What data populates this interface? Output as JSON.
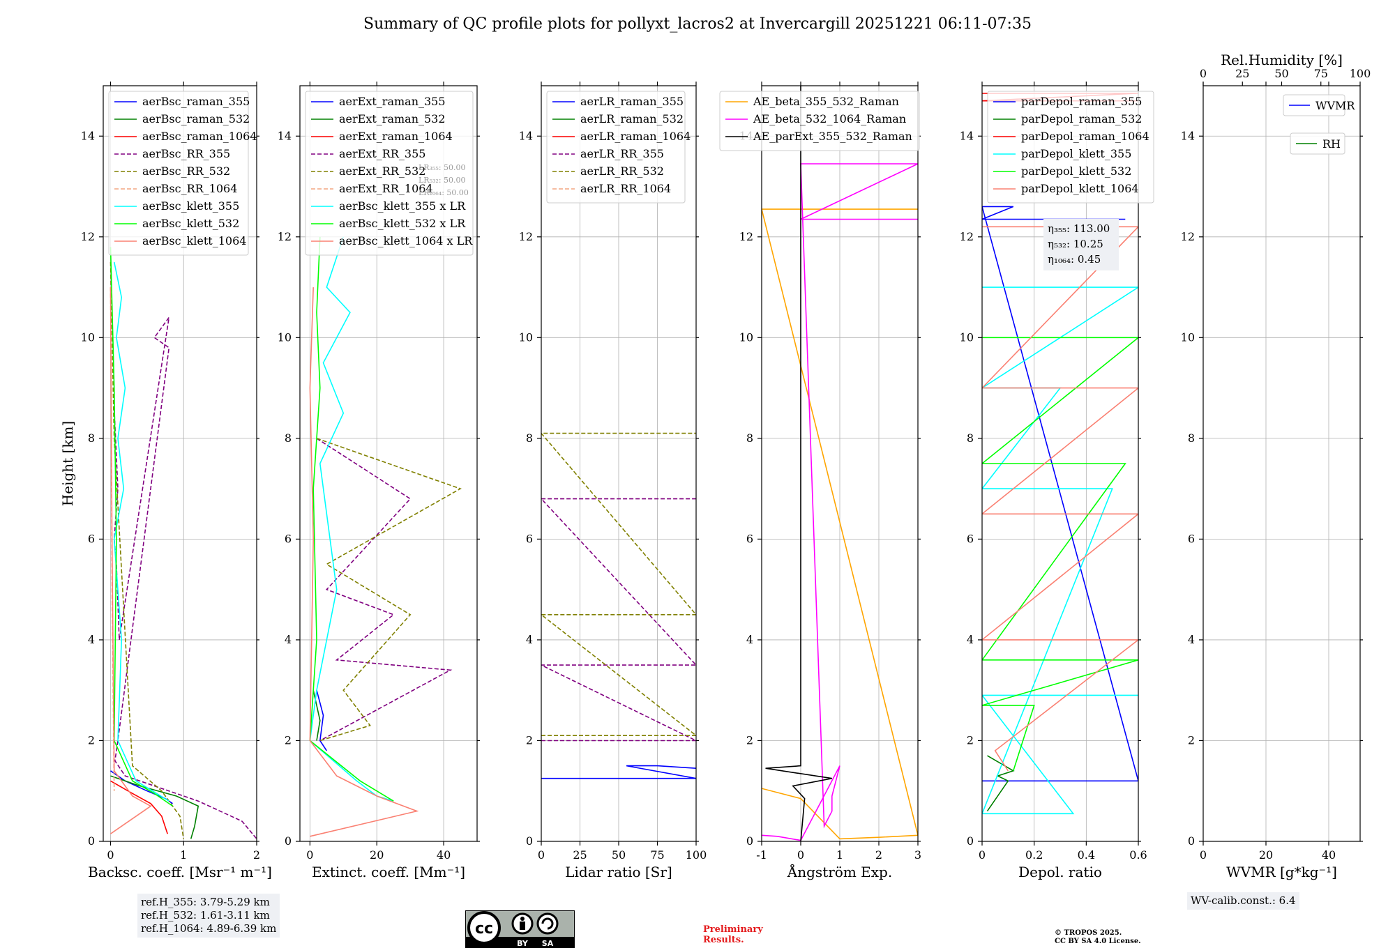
{
  "figure": {
    "title": "Summary of QC profile plots for pollyxt_lacros2 at Invercargill 20251221 06:11-07:35",
    "ylabel": "Height [km]",
    "ref_heights": [
      "ref.H_355: 3.79-5.29 km",
      "ref.H_532: 1.61-3.11 km",
      "ref.H_1064: 4.89-6.39 km"
    ],
    "wv_calib": "WV-calib.const.: 6.4",
    "preliminary": [
      "Preliminary",
      "Results."
    ],
    "copyright": [
      "© TROPOS 2025.",
      "CC BY SA 4.0 License."
    ],
    "license_badge": {
      "cc": "cc",
      "by": "BY",
      "sa": "SA"
    }
  },
  "chart_data": [
    {
      "type": "line",
      "title": "",
      "xlabel": "Backsc. coeff. [Msr⁻¹ m⁻¹]",
      "ylabel": "Height [km]",
      "xlim": [
        -0.1,
        2
      ],
      "ylim": [
        0,
        15
      ],
      "xticks": [
        0,
        1,
        2
      ],
      "yticks": [
        0,
        2,
        4,
        6,
        8,
        10,
        12,
        14
      ],
      "legend": "top",
      "series": [
        {
          "name": "aerBsc_raman_355",
          "color": "#0000ff",
          "dash": false,
          "x": [
            0.0,
            0.2,
            0.5,
            0.75,
            0.85
          ],
          "y": [
            1.4,
            1.2,
            1.0,
            0.85,
            0.75
          ]
        },
        {
          "name": "aerBsc_raman_532",
          "color": "#008000",
          "dash": false,
          "x": [
            0.0,
            0.4,
            0.9,
            1.2,
            1.15,
            1.1
          ],
          "y": [
            1.3,
            1.1,
            0.9,
            0.7,
            0.3,
            0.05
          ]
        },
        {
          "name": "aerBsc_raman_1064",
          "color": "#ff0000",
          "dash": false,
          "x": [
            0.0,
            0.3,
            0.55,
            0.7,
            0.78
          ],
          "y": [
            1.2,
            0.95,
            0.75,
            0.5,
            0.15
          ]
        },
        {
          "name": "aerBsc_RR_355",
          "color": "#800080",
          "dash": true,
          "x": [
            0.05,
            0.1,
            0.05,
            0.08,
            0.12,
            0.8,
            0.6,
            0.8,
            0.1,
            0.06,
            0.2,
            0.6,
            1.2,
            1.8,
            2.0
          ],
          "y": [
            8.6,
            7.0,
            6.0,
            5.5,
            4.0,
            10.4,
            10.0,
            9.8,
            2.0,
            1.6,
            1.3,
            1.1,
            0.8,
            0.4,
            0.05
          ]
        },
        {
          "name": "aerBsc_RR_532",
          "color": "#808000",
          "dash": true,
          "x": [
            0.0,
            0.05,
            0.3,
            0.7,
            0.95,
            1.0
          ],
          "y": [
            11.5,
            8.0,
            1.5,
            1.0,
            0.5,
            0.05
          ]
        },
        {
          "name": "aerBsc_RR_1064",
          "color": "#f4a582",
          "dash": true,
          "x": [
            0.0,
            0.02,
            0.05
          ],
          "y": [
            11.0,
            5.0,
            1.0
          ]
        },
        {
          "name": "aerBsc_klett_355",
          "color": "#00ffff",
          "dash": false,
          "x": [
            0.05,
            0.15,
            0.08,
            0.2,
            0.1,
            0.18,
            0.05,
            0.15,
            0.1,
            0.35,
            0.8
          ],
          "y": [
            11.5,
            10.8,
            10.0,
            9.0,
            8.0,
            7.0,
            6.0,
            4.0,
            2.0,
            1.2,
            0.8
          ]
        },
        {
          "name": "aerBsc_klett_532",
          "color": "#00ff00",
          "dash": false,
          "x": [
            0.0,
            0.05,
            0.08,
            0.05,
            0.3,
            0.6,
            0.85
          ],
          "y": [
            11.8,
            9.0,
            6.0,
            2.0,
            1.2,
            0.95,
            0.7
          ]
        },
        {
          "name": "aerBsc_klett_1064",
          "color": "#fa8072",
          "dash": false,
          "x": [
            0.0,
            0.02,
            0.05,
            0.3,
            0.55,
            0.0
          ],
          "y": [
            11.0,
            6.0,
            1.4,
            0.9,
            0.7,
            0.15
          ]
        }
      ],
      "annotations": []
    },
    {
      "type": "line",
      "title": "",
      "xlabel": "Extinct. coeff. [Mm⁻¹]",
      "xlim": [
        -3,
        50
      ],
      "ylim": [
        0,
        15
      ],
      "xticks": [
        0,
        20,
        40
      ],
      "yticks": [
        0,
        2,
        4,
        6,
        8,
        10,
        12,
        14
      ],
      "legend": "top",
      "series": [
        {
          "name": "aerExt_raman_355",
          "color": "#0000ff",
          "dash": false,
          "x": [
            2,
            4,
            3,
            5
          ],
          "y": [
            3.0,
            2.5,
            2.0,
            1.8
          ]
        },
        {
          "name": "aerExt_raman_532",
          "color": "#008000",
          "dash": false,
          "x": [
            1,
            3,
            2
          ],
          "y": [
            3.0,
            2.4,
            2.0
          ]
        },
        {
          "name": "aerExt_raman_1064",
          "color": "#ff0000",
          "dash": false,
          "x": [],
          "y": []
        },
        {
          "name": "aerExt_RR_355",
          "color": "#800080",
          "dash": true,
          "x": [
            2,
            30,
            5,
            25,
            8,
            42,
            3
          ],
          "y": [
            8.0,
            6.8,
            5.0,
            4.5,
            3.6,
            3.4,
            2.0
          ]
        },
        {
          "name": "aerExt_RR_532",
          "color": "#808000",
          "dash": true,
          "x": [
            2,
            45,
            5,
            30,
            10,
            18,
            3
          ],
          "y": [
            8.0,
            7.0,
            5.5,
            4.5,
            3.0,
            2.3,
            2.0
          ]
        },
        {
          "name": "aerExt_RR_1064",
          "color": "#f4a582",
          "dash": true,
          "x": [],
          "y": []
        },
        {
          "name": "aerBsc_klett_355 x LR",
          "color": "#00ffff",
          "dash": false,
          "x": [
            10,
            5,
            12,
            4,
            10,
            3,
            8,
            2,
            0,
            14,
            20,
            25
          ],
          "y": [
            12.0,
            11.0,
            10.5,
            9.5,
            8.5,
            7.5,
            5.0,
            3.0,
            2.0,
            1.2,
            0.9,
            0.8
          ]
        },
        {
          "name": "aerBsc_klett_532 x LR",
          "color": "#00ff00",
          "dash": false,
          "x": [
            3,
            2,
            3,
            1,
            2,
            0,
            15,
            25
          ],
          "y": [
            12.0,
            10.5,
            9.0,
            7.0,
            4.0,
            2.0,
            1.2,
            0.8
          ]
        },
        {
          "name": "aerBsc_klett_1064 x LR",
          "color": "#fa8072",
          "dash": false,
          "x": [
            1,
            0,
            1,
            0,
            8,
            20,
            32,
            0
          ],
          "y": [
            11.0,
            9.0,
            6.0,
            2.0,
            1.3,
            0.9,
            0.6,
            0.1
          ]
        }
      ],
      "annotations": [
        "LR₃₅₅: 50.00",
        "LR₅₃₂: 50.00",
        "LR₁₀₆₄: 50.00"
      ]
    },
    {
      "type": "line",
      "title": "",
      "xlabel": "Lidar ratio [Sr]",
      "xlim": [
        0,
        100
      ],
      "ylim": [
        0,
        15
      ],
      "xticks": [
        0,
        25,
        50,
        75,
        100
      ],
      "yticks": [
        0,
        2,
        4,
        6,
        8,
        10,
        12,
        14
      ],
      "legend": "top",
      "series": [
        {
          "name": "aerLR_raman_355",
          "color": "#0000ff",
          "dash": false,
          "x": [
            0,
            100,
            55,
            75,
            100
          ],
          "y": [
            1.25,
            1.25,
            1.5,
            1.5,
            1.45
          ]
        },
        {
          "name": "aerLR_raman_532",
          "color": "#008000",
          "dash": false,
          "x": [],
          "y": []
        },
        {
          "name": "aerLR_raman_1064",
          "color": "#ff0000",
          "dash": false,
          "x": [],
          "y": []
        },
        {
          "name": "aerLR_RR_355",
          "color": "#800080",
          "dash": true,
          "x": [
            0,
            100,
            0,
            100,
            0,
            100
          ],
          "y": [
            2.0,
            2.0,
            3.5,
            3.5,
            6.8,
            6.8
          ]
        },
        {
          "name": "aerLR_RR_532",
          "color": "#808000",
          "dash": true,
          "x": [
            0,
            100,
            0,
            100,
            0,
            100
          ],
          "y": [
            2.1,
            2.1,
            4.5,
            4.5,
            8.1,
            8.1
          ]
        },
        {
          "name": "aerLR_RR_1064",
          "color": "#f4a582",
          "dash": true,
          "x": [],
          "y": []
        }
      ],
      "annotations": []
    },
    {
      "type": "line",
      "title": "",
      "xlabel": "Ångström Exp.",
      "xlim": [
        -1,
        3
      ],
      "ylim": [
        0,
        15
      ],
      "xticks": [
        -1,
        0,
        1,
        2,
        3
      ],
      "yticks": [
        0,
        2,
        4,
        6,
        8,
        10,
        12,
        14
      ],
      "legend": "top",
      "series": [
        {
          "name": "AE_beta_355_532_Raman",
          "color": "#ffa500",
          "dash": false,
          "x": [
            -1,
            0,
            1,
            2,
            3,
            -1,
            3
          ],
          "y": [
            1.05,
            0.85,
            0.05,
            0.08,
            0.12,
            12.55,
            12.55
          ]
        },
        {
          "name": "AE_beta_532_1064_Raman",
          "color": "#ff00ff",
          "dash": false,
          "x": [
            -1,
            -0.6,
            0,
            1,
            0.8,
            0.8,
            0.6,
            0,
            3,
            0,
            3
          ],
          "y": [
            0.12,
            0.1,
            0.02,
            1.5,
            0.9,
            0.6,
            0.3,
            13.45,
            13.45,
            12.35,
            12.35
          ]
        },
        {
          "name": "AE_parExt_355_532_Raman",
          "color": "#000000",
          "dash": false,
          "x": [
            0,
            0,
            -0.9,
            0.8,
            -0.2,
            0.1,
            0
          ],
          "y": [
            15,
            1.5,
            1.45,
            1.25,
            1.1,
            0.85,
            0
          ]
        }
      ],
      "annotations": []
    },
    {
      "type": "line",
      "title": "",
      "xlabel": "Depol. ratio",
      "xlim": [
        0,
        0.6
      ],
      "ylim": [
        0,
        15
      ],
      "xticks": [
        0.0,
        0.2,
        0.4,
        0.6
      ],
      "yticks": [
        0,
        2,
        4,
        6,
        8,
        10,
        12,
        14
      ],
      "legend": "top-left",
      "series": [
        {
          "name": "parDepol_raman_355",
          "color": "#0000ff",
          "dash": false,
          "x": [
            0,
            0.6,
            0,
            0.12,
            0,
            0.55
          ],
          "y": [
            1.2,
            1.2,
            12.6,
            12.6,
            12.35,
            12.35
          ]
        },
        {
          "name": "parDepol_raman_532",
          "color": "#008000",
          "dash": false,
          "x": [
            0.02,
            0.1,
            0.06,
            0.12,
            0.02
          ],
          "y": [
            0.6,
            1.2,
            1.3,
            1.4,
            1.7
          ]
        },
        {
          "name": "parDepol_raman_1064",
          "color": "#ff0000",
          "dash": false,
          "x": [
            0,
            0.6,
            0,
            0.6
          ],
          "y": [
            14.85,
            14.85,
            14.7,
            14.7
          ]
        },
        {
          "name": "parDepol_klett_355",
          "color": "#00ffff",
          "dash": false,
          "x": [
            0,
            0.6,
            0,
            0.3,
            0,
            0.5,
            0,
            0.35,
            0,
            0.6
          ],
          "y": [
            11.0,
            11.0,
            9.0,
            9.0,
            7.0,
            7.0,
            0.55,
            0.55,
            2.9,
            2.9
          ]
        },
        {
          "name": "parDepol_klett_532",
          "color": "#00ff00",
          "dash": false,
          "x": [
            0,
            0.6,
            0,
            0.55,
            0,
            0.6,
            0,
            0.2,
            0.12
          ],
          "y": [
            10.0,
            10.0,
            7.5,
            7.5,
            3.6,
            3.6,
            2.7,
            2.7,
            1.4
          ]
        },
        {
          "name": "parDepol_klett_1064",
          "color": "#fa8072",
          "dash": false,
          "x": [
            0,
            0.6,
            0,
            0.6,
            0,
            0.6,
            0,
            0.6,
            0.05,
            0.1
          ],
          "y": [
            12.2,
            12.2,
            9.0,
            9.0,
            6.5,
            6.5,
            4.0,
            4.0,
            1.8,
            1.4
          ]
        }
      ],
      "annotations": [
        "η₃₅₅: 113.00",
        "η₅₃₂: 10.25",
        "η₁₀₆₄: 0.45"
      ]
    },
    {
      "type": "line",
      "title": "",
      "xlabel": "WVMR [g*kg⁻¹]",
      "x2label": "Rel.Humidity [%]",
      "xlim": [
        0,
        50
      ],
      "x2lim": [
        0,
        100
      ],
      "ylim": [
        0,
        15
      ],
      "xticks": [
        0,
        20,
        40
      ],
      "x2ticks": [
        0,
        25,
        50,
        75,
        100
      ],
      "yticks": [
        0,
        2,
        4,
        6,
        8,
        10,
        12,
        14
      ],
      "legend": "top-right",
      "series": [
        {
          "name": "WVMR",
          "color": "#0000ff",
          "dash": false,
          "x": [],
          "y": []
        },
        {
          "name": "RH",
          "color": "#008000",
          "dash": false,
          "x": [],
          "y": []
        }
      ],
      "annotations": []
    }
  ]
}
